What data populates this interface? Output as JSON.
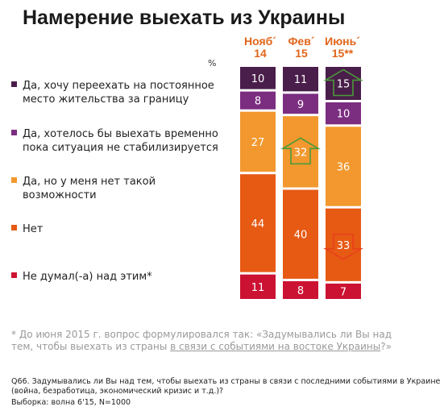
{
  "chart_data": {
    "type": "bar",
    "stacked": true,
    "title": "Намерение выехать из Украины",
    "unit_label": "%",
    "categories": [
      "Нояб´ 14",
      "Фев´ 15",
      "Июнь´ 15**"
    ],
    "category_lines": [
      [
        "Нояб´",
        "14"
      ],
      [
        "Фев´",
        "15"
      ],
      [
        "Июнь´",
        "15**"
      ]
    ],
    "series": [
      {
        "name": "Да, хочу переехать на постоянное место жительства за границу",
        "color": "#4a1e4a",
        "values": [
          10,
          11,
          15
        ]
      },
      {
        "name": "Да, хотелось бы выехать временно пока ситуация не стабилизируется",
        "color": "#7b2d80",
        "values": [
          8,
          9,
          10
        ]
      },
      {
        "name": "Да, но у меня нет такой возможности",
        "color": "#f2982e",
        "values": [
          27,
          32,
          36
        ]
      },
      {
        "name": "Нет",
        "color": "#e65a14",
        "values": [
          44,
          40,
          33
        ]
      },
      {
        "name": "Не думал(-а) над этим*",
        "color": "#cc1232",
        "values": [
          11,
          8,
          7
        ]
      }
    ],
    "ylim": [
      0,
      100
    ],
    "highlights": [
      {
        "category": "Фев´ 15",
        "series": "Да, но у меня нет такой возможности",
        "direction": "up",
        "color": "#4a9a3a"
      },
      {
        "category": "Июнь´ 15**",
        "series": "Да, хочу переехать на постоянное место жительства за границу",
        "direction": "up",
        "color": "#4a9a3a"
      },
      {
        "category": "Июнь´ 15**",
        "series": "Нет",
        "direction": "down",
        "color": "#e8401a"
      }
    ]
  },
  "legend": [
    {
      "lines": [
        "Да, хочу переехать на постоянное",
        "место жительства за границу"
      ],
      "color": "#4a1e4a"
    },
    {
      "lines": [
        "Да, хотелось бы выехать временно",
        "пока ситуация не стабилизируется"
      ],
      "color": "#7b2d80"
    },
    {
      "lines": [
        "Да, но у меня нет такой",
        "возможности"
      ],
      "color": "#f2982e"
    },
    {
      "lines": [
        "Нет"
      ],
      "color": "#e65a14"
    },
    {
      "lines": [
        "Не думал(-а) над этим*"
      ],
      "color": "#cc1232"
    }
  ],
  "footnote": {
    "part1": "* До июня 2015 г. вопрос формулировался так: «Задумывались ли Вы над тем, чтобы выехать из страны ",
    "underlined": "в связи с событиями на востоке Украины",
    "part2": "?»"
  },
  "question": "Q66. Задумывались ли Вы над тем, чтобы выехать из страны в связи с последними событиями в Украине (война, безработица, экономический кризис и т.д.)?",
  "sample": "Выборка: волна 6'15, N=1000"
}
